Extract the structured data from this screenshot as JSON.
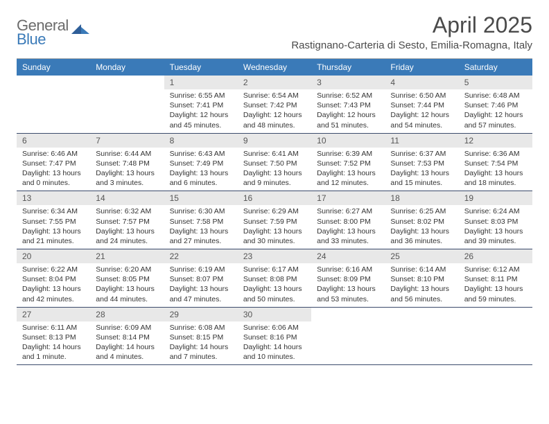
{
  "logo": {
    "top": "General",
    "bottom": "Blue"
  },
  "title": "April 2025",
  "location": "Rastignano-Carteria di Sesto, Emilia-Romagna, Italy",
  "colors": {
    "header_bg": "#3a7ab8",
    "header_fg": "#ffffff",
    "daynum_bg": "#e8e8e8",
    "rule": "#3a4a6a",
    "logo_gray": "#6b6b6b",
    "logo_blue": "#3a7ab8"
  },
  "day_names": [
    "Sunday",
    "Monday",
    "Tuesday",
    "Wednesday",
    "Thursday",
    "Friday",
    "Saturday"
  ],
  "weeks": [
    [
      null,
      null,
      {
        "n": "1",
        "sr": "6:55 AM",
        "ss": "7:41 PM",
        "dl": "12 hours and 45 minutes."
      },
      {
        "n": "2",
        "sr": "6:54 AM",
        "ss": "7:42 PM",
        "dl": "12 hours and 48 minutes."
      },
      {
        "n": "3",
        "sr": "6:52 AM",
        "ss": "7:43 PM",
        "dl": "12 hours and 51 minutes."
      },
      {
        "n": "4",
        "sr": "6:50 AM",
        "ss": "7:44 PM",
        "dl": "12 hours and 54 minutes."
      },
      {
        "n": "5",
        "sr": "6:48 AM",
        "ss": "7:46 PM",
        "dl": "12 hours and 57 minutes."
      }
    ],
    [
      {
        "n": "6",
        "sr": "6:46 AM",
        "ss": "7:47 PM",
        "dl": "13 hours and 0 minutes."
      },
      {
        "n": "7",
        "sr": "6:44 AM",
        "ss": "7:48 PM",
        "dl": "13 hours and 3 minutes."
      },
      {
        "n": "8",
        "sr": "6:43 AM",
        "ss": "7:49 PM",
        "dl": "13 hours and 6 minutes."
      },
      {
        "n": "9",
        "sr": "6:41 AM",
        "ss": "7:50 PM",
        "dl": "13 hours and 9 minutes."
      },
      {
        "n": "10",
        "sr": "6:39 AM",
        "ss": "7:52 PM",
        "dl": "13 hours and 12 minutes."
      },
      {
        "n": "11",
        "sr": "6:37 AM",
        "ss": "7:53 PM",
        "dl": "13 hours and 15 minutes."
      },
      {
        "n": "12",
        "sr": "6:36 AM",
        "ss": "7:54 PM",
        "dl": "13 hours and 18 minutes."
      }
    ],
    [
      {
        "n": "13",
        "sr": "6:34 AM",
        "ss": "7:55 PM",
        "dl": "13 hours and 21 minutes."
      },
      {
        "n": "14",
        "sr": "6:32 AM",
        "ss": "7:57 PM",
        "dl": "13 hours and 24 minutes."
      },
      {
        "n": "15",
        "sr": "6:30 AM",
        "ss": "7:58 PM",
        "dl": "13 hours and 27 minutes."
      },
      {
        "n": "16",
        "sr": "6:29 AM",
        "ss": "7:59 PM",
        "dl": "13 hours and 30 minutes."
      },
      {
        "n": "17",
        "sr": "6:27 AM",
        "ss": "8:00 PM",
        "dl": "13 hours and 33 minutes."
      },
      {
        "n": "18",
        "sr": "6:25 AM",
        "ss": "8:02 PM",
        "dl": "13 hours and 36 minutes."
      },
      {
        "n": "19",
        "sr": "6:24 AM",
        "ss": "8:03 PM",
        "dl": "13 hours and 39 minutes."
      }
    ],
    [
      {
        "n": "20",
        "sr": "6:22 AM",
        "ss": "8:04 PM",
        "dl": "13 hours and 42 minutes."
      },
      {
        "n": "21",
        "sr": "6:20 AM",
        "ss": "8:05 PM",
        "dl": "13 hours and 44 minutes."
      },
      {
        "n": "22",
        "sr": "6:19 AM",
        "ss": "8:07 PM",
        "dl": "13 hours and 47 minutes."
      },
      {
        "n": "23",
        "sr": "6:17 AM",
        "ss": "8:08 PM",
        "dl": "13 hours and 50 minutes."
      },
      {
        "n": "24",
        "sr": "6:16 AM",
        "ss": "8:09 PM",
        "dl": "13 hours and 53 minutes."
      },
      {
        "n": "25",
        "sr": "6:14 AM",
        "ss": "8:10 PM",
        "dl": "13 hours and 56 minutes."
      },
      {
        "n": "26",
        "sr": "6:12 AM",
        "ss": "8:11 PM",
        "dl": "13 hours and 59 minutes."
      }
    ],
    [
      {
        "n": "27",
        "sr": "6:11 AM",
        "ss": "8:13 PM",
        "dl": "14 hours and 1 minute."
      },
      {
        "n": "28",
        "sr": "6:09 AM",
        "ss": "8:14 PM",
        "dl": "14 hours and 4 minutes."
      },
      {
        "n": "29",
        "sr": "6:08 AM",
        "ss": "8:15 PM",
        "dl": "14 hours and 7 minutes."
      },
      {
        "n": "30",
        "sr": "6:06 AM",
        "ss": "8:16 PM",
        "dl": "14 hours and 10 minutes."
      },
      null,
      null,
      null
    ]
  ],
  "labels": {
    "sunrise": "Sunrise:",
    "sunset": "Sunset:",
    "daylight": "Daylight:"
  }
}
